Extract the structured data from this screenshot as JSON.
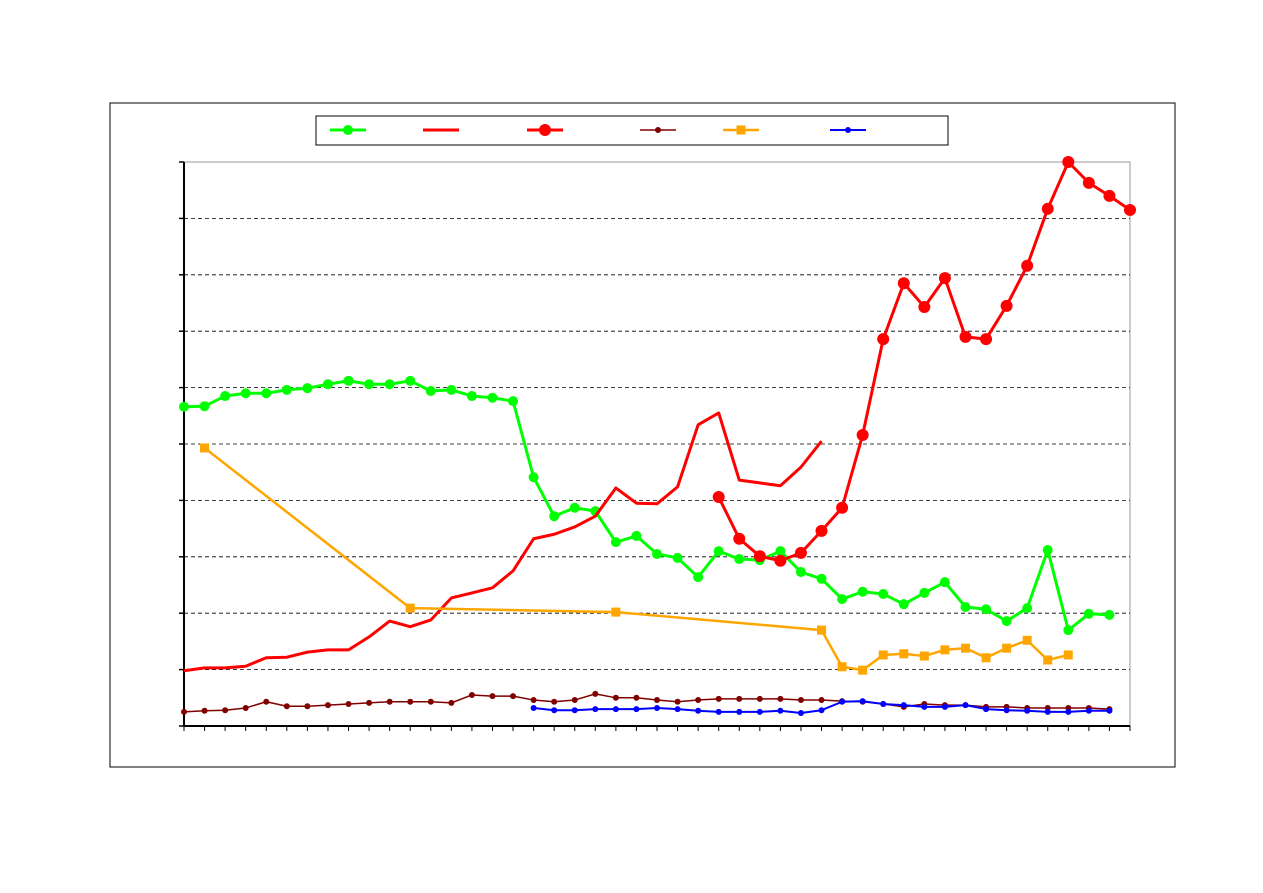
{
  "chart_data": {
    "type": "line",
    "xlim": [
      0,
      46
    ],
    "xticks": [
      0,
      1,
      2,
      3,
      4,
      5,
      6,
      7,
      8,
      9,
      10,
      11,
      12,
      13,
      14,
      15,
      16,
      17,
      18,
      19,
      20,
      21,
      22,
      23,
      24,
      25,
      26,
      27,
      28,
      29,
      30,
      31,
      32,
      33,
      34,
      35,
      36,
      37,
      38,
      39,
      40,
      41,
      42,
      43,
      44,
      45,
      46
    ],
    "ylim": [
      0,
      10
    ],
    "yticks": [
      0,
      1,
      2,
      3,
      4,
      5,
      6,
      7,
      8,
      9,
      10
    ],
    "grid": true,
    "series": [
      {
        "color": "#00ff00",
        "marker": "circle",
        "x": [
          0,
          1,
          2,
          3,
          4,
          5,
          6,
          7,
          8,
          9,
          10,
          11,
          12,
          13,
          14,
          15,
          16,
          17,
          18,
          19,
          20,
          21,
          22,
          23,
          24,
          25,
          26,
          27,
          28,
          29,
          30,
          31,
          32,
          33,
          34,
          35,
          36,
          37,
          38,
          39,
          40,
          41,
          42,
          43,
          44,
          45
        ],
        "values": [
          5.66,
          5.67,
          5.85,
          5.9,
          5.9,
          5.96,
          5.99,
          6.06,
          6.12,
          6.06,
          6.06,
          6.12,
          5.94,
          5.96,
          5.85,
          5.82,
          5.76,
          4.41,
          3.72,
          3.87,
          3.81,
          3.26,
          3.37,
          3.05,
          2.98,
          2.64,
          3.1,
          2.96,
          2.94,
          3.1,
          2.73,
          2.61,
          2.25,
          2.38,
          2.34,
          2.16,
          2.36,
          2.55,
          2.11,
          2.07,
          1.86,
          2.09,
          3.12,
          1.7,
          1.99,
          1.97
        ]
      },
      {
        "color": "#ff0000",
        "marker": "none",
        "x": [
          0,
          1,
          2,
          3,
          4,
          5,
          6,
          7,
          8,
          9,
          10,
          11,
          12,
          13,
          14,
          15,
          16,
          17,
          18,
          19,
          20,
          21,
          22,
          23,
          24,
          25,
          26,
          27,
          28,
          29,
          30,
          31
        ],
        "values": [
          0.98,
          1.03,
          1.03,
          1.06,
          1.21,
          1.22,
          1.31,
          1.35,
          1.35,
          1.58,
          1.86,
          1.76,
          1.88,
          2.27,
          2.36,
          2.45,
          2.75,
          3.32,
          3.4,
          3.53,
          3.72,
          4.22,
          3.95,
          3.94,
          4.24,
          5.34,
          5.55,
          4.36,
          4.31,
          4.26,
          4.59,
          5.05
        ]
      },
      {
        "color": "#ff0000",
        "marker": "circle",
        "x": [
          26,
          27,
          28,
          29,
          30,
          31,
          32,
          33,
          34,
          35,
          36,
          37,
          38,
          39,
          40,
          41,
          42,
          43,
          44,
          45,
          46
        ],
        "values": [
          4.06,
          3.32,
          3.01,
          2.93,
          3.07,
          3.46,
          3.87,
          5.16,
          6.86,
          7.85,
          7.43,
          7.94,
          6.9,
          6.86,
          7.45,
          8.16,
          9.17,
          10.0,
          9.63,
          9.4,
          9.15
        ]
      },
      {
        "color": "#800000",
        "marker": "circle",
        "x": [
          0,
          1,
          2,
          3,
          4,
          5,
          6,
          7,
          8,
          9,
          10,
          11,
          12,
          13,
          14,
          15,
          16,
          17,
          18,
          19,
          20,
          21,
          22,
          23,
          24,
          25,
          26,
          27,
          28,
          29,
          30,
          31,
          32,
          33,
          34,
          35,
          36,
          37,
          38,
          39,
          40,
          41,
          42,
          43,
          44,
          45
        ],
        "values": [
          0.25,
          0.27,
          0.28,
          0.32,
          0.43,
          0.35,
          0.35,
          0.37,
          0.39,
          0.41,
          0.43,
          0.43,
          0.43,
          0.41,
          0.55,
          0.53,
          0.53,
          0.46,
          0.43,
          0.46,
          0.57,
          0.5,
          0.5,
          0.46,
          0.43,
          0.46,
          0.48,
          0.48,
          0.48,
          0.48,
          0.46,
          0.46,
          0.44,
          0.43,
          0.39,
          0.34,
          0.39,
          0.37,
          0.37,
          0.34,
          0.34,
          0.32,
          0.32,
          0.32,
          0.32,
          0.3
        ]
      },
      {
        "color": "#ffa500",
        "marker": "square",
        "x": [
          1,
          11,
          21,
          31,
          32,
          33,
          34,
          35,
          36,
          37,
          38,
          39,
          40,
          41,
          42,
          43
        ],
        "values": [
          4.93,
          2.09,
          2.02,
          1.7,
          1.05,
          0.99,
          1.26,
          1.28,
          1.24,
          1.35,
          1.38,
          1.21,
          1.38,
          1.52,
          1.17,
          1.26
        ]
      },
      {
        "color": "#0000ff",
        "marker": "circle",
        "x": [
          17,
          18,
          19,
          20,
          21,
          22,
          23,
          24,
          25,
          26,
          27,
          28,
          29,
          30,
          31,
          32,
          33,
          34,
          35,
          36,
          37,
          38,
          39,
          40,
          41,
          42,
          43,
          44,
          45
        ],
        "values": [
          0.32,
          0.28,
          0.28,
          0.3,
          0.3,
          0.3,
          0.32,
          0.3,
          0.27,
          0.25,
          0.25,
          0.25,
          0.27,
          0.23,
          0.28,
          0.43,
          0.44,
          0.39,
          0.37,
          0.34,
          0.34,
          0.37,
          0.3,
          0.28,
          0.27,
          0.25,
          0.25,
          0.27,
          0.27
        ]
      }
    ]
  }
}
